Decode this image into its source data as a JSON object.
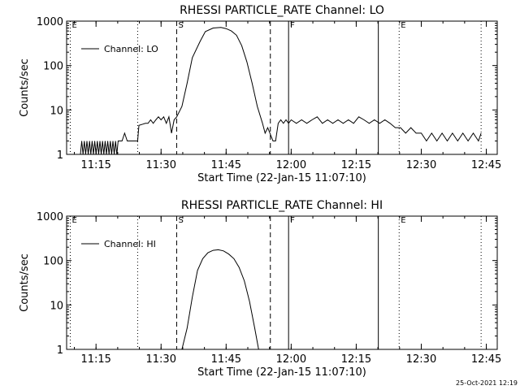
{
  "chart_data": [
    {
      "type": "line",
      "title": "RHESSI PARTICLE_RATE Channel: LO",
      "xlabel": "Start Time (22-Jan-15 11:07:10)",
      "ylabel": "Counts/sec",
      "yscale": "log",
      "xlim": [
        11.137,
        12.792
      ],
      "ylim": [
        1,
        1000
      ],
      "xticks": [
        {
          "t": 11.25,
          "label": "11:15"
        },
        {
          "t": 11.5,
          "label": "11:30"
        },
        {
          "t": 11.75,
          "label": "11:45"
        },
        {
          "t": 12.0,
          "label": "12:00"
        },
        {
          "t": 12.25,
          "label": "12:15"
        },
        {
          "t": 12.5,
          "label": "12:30"
        },
        {
          "t": 12.75,
          "label": "12:45"
        }
      ],
      "yticks": [
        {
          "v": 1,
          "label": "1"
        },
        {
          "v": 10,
          "label": "10"
        },
        {
          "v": 100,
          "label": "100"
        },
        {
          "v": 1000,
          "label": "1000"
        }
      ],
      "legend": {
        "label": "Channel: LO",
        "position": "top-left"
      },
      "vlines": [
        {
          "t": 11.151,
          "style": "dotted",
          "label": "E"
        },
        {
          "t": 11.41,
          "style": "dotted",
          "label": ""
        },
        {
          "t": 11.56,
          "style": "dashed",
          "label": "S"
        },
        {
          "t": 11.92,
          "style": "dashed",
          "label": ""
        },
        {
          "t": 11.99,
          "style": "solid",
          "label": "F"
        },
        {
          "t": 12.335,
          "style": "solid",
          "label": ""
        },
        {
          "t": 12.415,
          "style": "dotted",
          "label": "E"
        },
        {
          "t": 12.73,
          "style": "dotted",
          "label": ""
        }
      ],
      "series": [
        {
          "name": "Channel: LO",
          "color": "#000000",
          "points": [
            [
              11.19,
              1
            ],
            [
              11.195,
              2
            ],
            [
              11.2,
              1
            ],
            [
              11.205,
              2
            ],
            [
              11.21,
              1
            ],
            [
              11.215,
              2
            ],
            [
              11.22,
              1
            ],
            [
              11.225,
              2
            ],
            [
              11.23,
              1
            ],
            [
              11.235,
              2
            ],
            [
              11.24,
              1
            ],
            [
              11.245,
              2
            ],
            [
              11.25,
              1
            ],
            [
              11.255,
              2
            ],
            [
              11.26,
              1
            ],
            [
              11.265,
              2
            ],
            [
              11.27,
              1
            ],
            [
              11.275,
              2
            ],
            [
              11.28,
              1
            ],
            [
              11.285,
              2
            ],
            [
              11.29,
              1
            ],
            [
              11.295,
              2
            ],
            [
              11.3,
              1
            ],
            [
              11.305,
              2
            ],
            [
              11.31,
              1
            ],
            [
              11.315,
              2
            ],
            [
              11.32,
              1
            ],
            [
              11.325,
              2
            ],
            [
              11.33,
              1
            ],
            [
              11.335,
              2
            ],
            [
              11.34,
              2
            ],
            [
              11.35,
              2
            ],
            [
              11.36,
              3
            ],
            [
              11.37,
              2
            ],
            [
              11.38,
              2
            ],
            [
              11.39,
              2
            ],
            [
              11.4,
              2
            ],
            [
              11.41,
              2
            ],
            [
              11.415,
              4.5
            ],
            [
              11.43,
              4.8
            ],
            [
              11.44,
              5
            ],
            [
              11.45,
              5
            ],
            [
              11.46,
              6
            ],
            [
              11.47,
              5
            ],
            [
              11.48,
              6
            ],
            [
              11.49,
              7
            ],
            [
              11.5,
              6
            ],
            [
              11.51,
              7
            ],
            [
              11.52,
              5
            ],
            [
              11.53,
              7
            ],
            [
              11.54,
              3
            ],
            [
              11.55,
              6
            ],
            [
              11.56,
              7
            ],
            [
              11.58,
              12
            ],
            [
              11.6,
              40
            ],
            [
              11.62,
              150
            ],
            [
              11.65,
              350
            ],
            [
              11.67,
              580
            ],
            [
              11.7,
              700
            ],
            [
              11.73,
              720
            ],
            [
              11.75,
              680
            ],
            [
              11.77,
              600
            ],
            [
              11.79,
              480
            ],
            [
              11.81,
              280
            ],
            [
              11.83,
              120
            ],
            [
              11.85,
              40
            ],
            [
              11.87,
              12
            ],
            [
              11.89,
              5
            ],
            [
              11.9,
              3
            ],
            [
              11.91,
              4
            ],
            [
              11.93,
              2
            ],
            [
              11.94,
              2
            ],
            [
              11.95,
              5
            ],
            [
              11.96,
              6
            ],
            [
              11.97,
              5
            ],
            [
              11.98,
              6
            ],
            [
              11.99,
              5
            ],
            [
              12.0,
              6
            ],
            [
              12.02,
              5
            ],
            [
              12.04,
              6
            ],
            [
              12.06,
              5
            ],
            [
              12.08,
              6
            ],
            [
              12.1,
              7
            ],
            [
              12.12,
              5
            ],
            [
              12.14,
              6
            ],
            [
              12.16,
              5
            ],
            [
              12.18,
              6
            ],
            [
              12.2,
              5
            ],
            [
              12.22,
              6
            ],
            [
              12.24,
              5
            ],
            [
              12.26,
              7
            ],
            [
              12.28,
              6
            ],
            [
              12.3,
              5
            ],
            [
              12.32,
              6
            ],
            [
              12.34,
              5
            ],
            [
              12.36,
              6
            ],
            [
              12.38,
              5
            ],
            [
              12.4,
              4
            ],
            [
              12.42,
              4
            ],
            [
              12.44,
              3
            ],
            [
              12.46,
              4
            ],
            [
              12.48,
              3
            ],
            [
              12.5,
              3
            ],
            [
              12.52,
              2
            ],
            [
              12.54,
              3
            ],
            [
              12.56,
              2
            ],
            [
              12.58,
              3
            ],
            [
              12.6,
              2
            ],
            [
              12.62,
              3
            ],
            [
              12.64,
              2
            ],
            [
              12.66,
              3
            ],
            [
              12.68,
              2
            ],
            [
              12.7,
              3
            ],
            [
              12.72,
              2
            ],
            [
              12.73,
              3
            ]
          ]
        }
      ]
    },
    {
      "type": "line",
      "title": "RHESSI PARTICLE_RATE Channel: HI",
      "xlabel": "Start Time (22-Jan-15 11:07:10)",
      "ylabel": "Counts/sec",
      "yscale": "log",
      "xlim": [
        11.137,
        12.792
      ],
      "ylim": [
        1,
        1000
      ],
      "xticks": [
        {
          "t": 11.25,
          "label": "11:15"
        },
        {
          "t": 11.5,
          "label": "11:30"
        },
        {
          "t": 11.75,
          "label": "11:45"
        },
        {
          "t": 12.0,
          "label": "12:00"
        },
        {
          "t": 12.25,
          "label": "12:15"
        },
        {
          "t": 12.5,
          "label": "12:30"
        },
        {
          "t": 12.75,
          "label": "12:45"
        }
      ],
      "yticks": [
        {
          "v": 1,
          "label": "1"
        },
        {
          "v": 10,
          "label": "10"
        },
        {
          "v": 100,
          "label": "100"
        },
        {
          "v": 1000,
          "label": "1000"
        }
      ],
      "legend": {
        "label": "Channel: HI",
        "position": "top-left"
      },
      "vlines": [
        {
          "t": 11.151,
          "style": "dotted",
          "label": "E"
        },
        {
          "t": 11.41,
          "style": "dotted",
          "label": ""
        },
        {
          "t": 11.56,
          "style": "dashed",
          "label": "S"
        },
        {
          "t": 11.92,
          "style": "dashed",
          "label": ""
        },
        {
          "t": 11.99,
          "style": "solid",
          "label": "F"
        },
        {
          "t": 12.335,
          "style": "solid",
          "label": ""
        },
        {
          "t": 12.415,
          "style": "dotted",
          "label": "E"
        },
        {
          "t": 12.73,
          "style": "dotted",
          "label": ""
        }
      ],
      "series": [
        {
          "name": "Channel: HI",
          "color": "#000000",
          "points": [
            [
              11.58,
              1
            ],
            [
              11.6,
              3
            ],
            [
              11.62,
              15
            ],
            [
              11.64,
              60
            ],
            [
              11.66,
              110
            ],
            [
              11.68,
              150
            ],
            [
              11.7,
              170
            ],
            [
              11.72,
              175
            ],
            [
              11.74,
              165
            ],
            [
              11.76,
              140
            ],
            [
              11.78,
              110
            ],
            [
              11.8,
              70
            ],
            [
              11.82,
              35
            ],
            [
              11.84,
              12
            ],
            [
              11.86,
              3
            ],
            [
              11.875,
              1
            ]
          ]
        }
      ]
    }
  ],
  "footer": {
    "timestamp": "25-Oct-2021 12:19"
  }
}
